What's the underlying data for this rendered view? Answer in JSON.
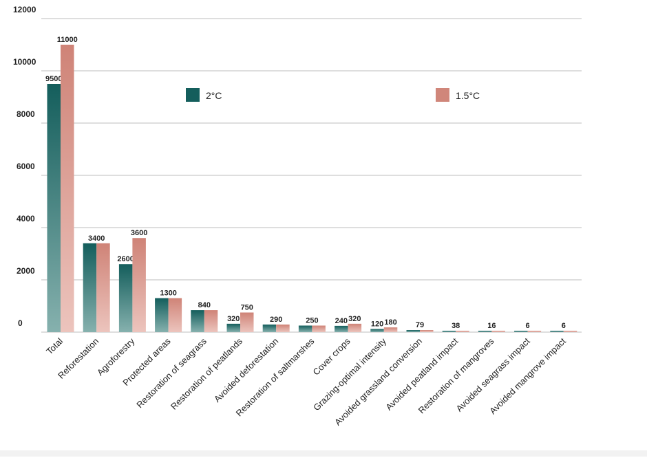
{
  "chart_data": {
    "type": "bar",
    "title": "",
    "xlabel": "",
    "ylabel": "",
    "ylim": [
      0,
      12000
    ],
    "yticks": [
      0,
      2000,
      4000,
      6000,
      8000,
      10000,
      12000
    ],
    "grid": true,
    "legend_placement": "top, inside plot",
    "categories": [
      "Total",
      "Reforestation",
      "Agroforestry",
      "Protected areas",
      "Restoration of seagrass",
      "Restoration of peatlands",
      "Avoided deforestation",
      "Restoration of saltmarshes",
      "Cover crops",
      "Grazing-optimal intensity",
      "Avoided grassland conversion",
      "Avoided peatland impact",
      "Restoration of mangroves",
      "Avoided seagrass impact",
      "Avoided mangrove impact"
    ],
    "series": [
      {
        "name": "2°C",
        "color": "#145e5c",
        "values": [
          9500,
          3400,
          2600,
          1300,
          840,
          320,
          290,
          250,
          240,
          120,
          79,
          38,
          16,
          6,
          6
        ]
      },
      {
        "name": "1.5°C",
        "color": "#d0867a",
        "values": [
          11000,
          3400,
          3600,
          1300,
          840,
          750,
          290,
          250,
          320,
          180,
          79,
          38,
          16,
          6,
          6
        ]
      }
    ],
    "data_labels": [
      [
        "9500",
        "11000"
      ],
      [
        "3400",
        ""
      ],
      [
        "2600",
        "3600"
      ],
      [
        "1300",
        ""
      ],
      [
        "840",
        ""
      ],
      [
        "320",
        "750"
      ],
      [
        "290",
        ""
      ],
      [
        "250",
        ""
      ],
      [
        "240",
        "320"
      ],
      [
        "120",
        "180"
      ],
      [
        "79",
        ""
      ],
      [
        "38",
        ""
      ],
      [
        "16",
        ""
      ],
      [
        "6",
        ""
      ],
      [
        "6",
        ""
      ]
    ]
  }
}
